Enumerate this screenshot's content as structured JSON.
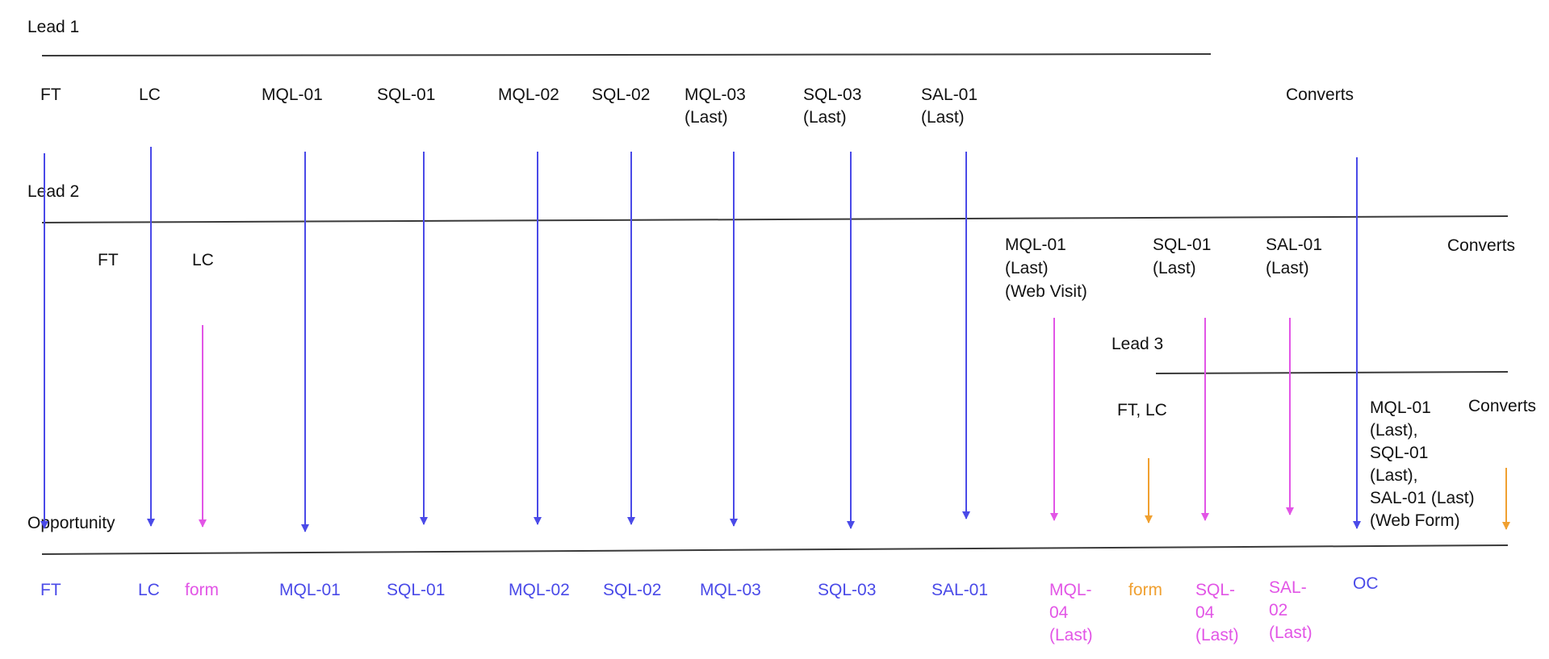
{
  "colors": {
    "line": "#3a3a3a",
    "text": "#111111",
    "blue": "#4a4ae8",
    "magenta": "#e255e6",
    "orange": "#f0a030"
  },
  "leads": [
    {
      "id": "lead1",
      "title": "Lead 1",
      "labels": [
        {
          "id": "ft",
          "lines": [
            "FT"
          ]
        },
        {
          "id": "lc",
          "lines": [
            "LC"
          ]
        },
        {
          "id": "mql01",
          "lines": [
            "MQL-01"
          ]
        },
        {
          "id": "sql01",
          "lines": [
            "SQL-01"
          ]
        },
        {
          "id": "mql02",
          "lines": [
            "MQL-02"
          ]
        },
        {
          "id": "sql02",
          "lines": [
            "SQL-02"
          ]
        },
        {
          "id": "mql03",
          "lines": [
            "MQL-03",
            "(Last)"
          ]
        },
        {
          "id": "sql03",
          "lines": [
            "SQL-03",
            "(Last)"
          ]
        },
        {
          "id": "sal01",
          "lines": [
            "SAL-01",
            "(Last)"
          ]
        },
        {
          "id": "converts",
          "lines": [
            "Converts"
          ]
        }
      ]
    },
    {
      "id": "lead2",
      "title": "Lead 2",
      "labels": [
        {
          "id": "ft",
          "lines": [
            "FT"
          ]
        },
        {
          "id": "lc",
          "lines": [
            "LC"
          ]
        },
        {
          "id": "mql01",
          "lines": [
            "MQL-01",
            "(Last)",
            "(Web Visit)"
          ]
        },
        {
          "id": "sql01",
          "lines": [
            "SQL-01",
            "(Last)"
          ]
        },
        {
          "id": "sal01",
          "lines": [
            "SAL-01",
            "(Last)"
          ]
        },
        {
          "id": "converts",
          "lines": [
            "Converts"
          ]
        }
      ]
    },
    {
      "id": "lead3",
      "title": "Lead 3",
      "labels": [
        {
          "id": "ftlc",
          "lines": [
            "FT, LC"
          ]
        },
        {
          "id": "mql",
          "lines": [
            "MQL-01",
            "(Last),",
            "SQL-01",
            "(Last),",
            "SAL-01 (Last)",
            "(Web Form)"
          ]
        },
        {
          "id": "converts",
          "lines": [
            "Converts"
          ]
        }
      ]
    }
  ],
  "opportunity": {
    "title": "Opportunity",
    "labels": [
      {
        "id": "ft",
        "lines": [
          "FT"
        ],
        "color": "blue"
      },
      {
        "id": "lc",
        "lines": [
          "LC"
        ],
        "color": "blue"
      },
      {
        "id": "form1",
        "lines": [
          "form"
        ],
        "color": "magenta"
      },
      {
        "id": "mql01",
        "lines": [
          "MQL-01"
        ],
        "color": "blue"
      },
      {
        "id": "sql01",
        "lines": [
          "SQL-01"
        ],
        "color": "blue"
      },
      {
        "id": "mql02",
        "lines": [
          "MQL-02"
        ],
        "color": "blue"
      },
      {
        "id": "sql02",
        "lines": [
          "SQL-02"
        ],
        "color": "blue"
      },
      {
        "id": "mql03",
        "lines": [
          "MQL-03"
        ],
        "color": "blue"
      },
      {
        "id": "sql03",
        "lines": [
          "SQL-03"
        ],
        "color": "blue"
      },
      {
        "id": "sal01",
        "lines": [
          "SAL-01"
        ],
        "color": "blue"
      },
      {
        "id": "mql04",
        "lines": [
          "MQL-",
          "04",
          "(Last)"
        ],
        "color": "magenta"
      },
      {
        "id": "form2",
        "lines": [
          "form"
        ],
        "color": "orange"
      },
      {
        "id": "sql04",
        "lines": [
          "SQL-",
          "04",
          "(Last)"
        ],
        "color": "magenta"
      },
      {
        "id": "sal02",
        "lines": [
          "SAL-",
          "02",
          "(Last)"
        ],
        "color": "magenta"
      },
      {
        "id": "oc",
        "lines": [
          "OC"
        ],
        "color": "blue"
      }
    ]
  },
  "arrows": [
    {
      "id": "ft",
      "color": "blue"
    },
    {
      "id": "lc",
      "color": "blue"
    },
    {
      "id": "form1",
      "color": "magenta"
    },
    {
      "id": "mql01",
      "color": "blue"
    },
    {
      "id": "sql01",
      "color": "blue"
    },
    {
      "id": "mql02",
      "color": "blue"
    },
    {
      "id": "sql02",
      "color": "blue"
    },
    {
      "id": "mql03",
      "color": "blue"
    },
    {
      "id": "sql03",
      "color": "blue"
    },
    {
      "id": "sal01",
      "color": "blue"
    },
    {
      "id": "mql04",
      "color": "magenta"
    },
    {
      "id": "form2",
      "color": "orange"
    },
    {
      "id": "sql04",
      "color": "magenta"
    },
    {
      "id": "sal02",
      "color": "magenta"
    },
    {
      "id": "oc",
      "color": "blue"
    },
    {
      "id": "lead3-converts",
      "color": "orange"
    }
  ]
}
